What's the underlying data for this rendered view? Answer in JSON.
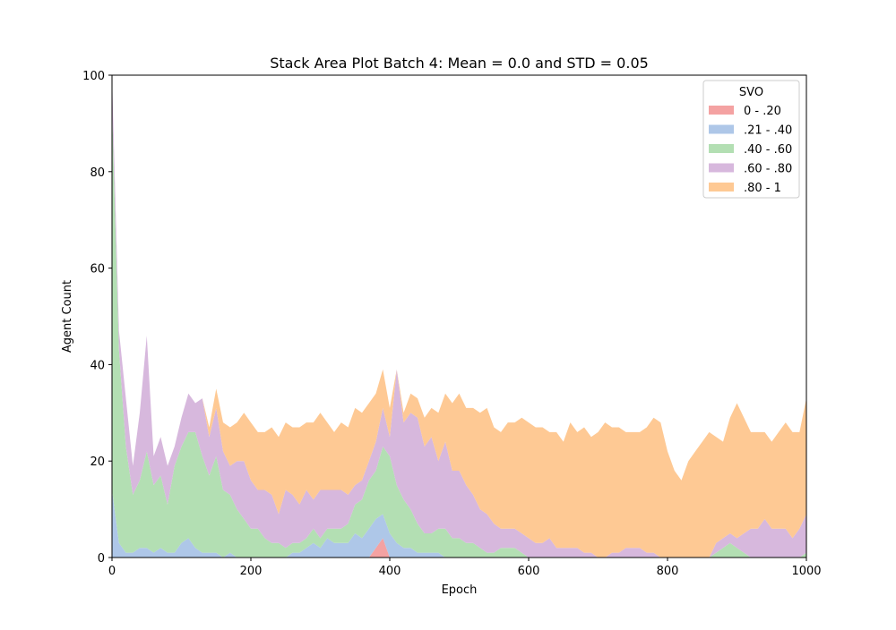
{
  "chart_data": {
    "type": "area",
    "stacked": true,
    "title": "Stack Area Plot Batch 4: Mean = 0.0 and STD = 0.05",
    "xlabel": "Epoch",
    "ylabel": "Agent Count",
    "xlim": [
      0,
      1000
    ],
    "ylim": [
      0,
      100
    ],
    "xticks": [
      "0",
      "200",
      "400",
      "600",
      "800",
      "1000"
    ],
    "yticks": [
      "0",
      "20",
      "40",
      "60",
      "80",
      "100"
    ],
    "grid": false,
    "legend": {
      "title": "SVO",
      "placement": "top-right"
    },
    "x": [
      0,
      10,
      20,
      30,
      40,
      50,
      60,
      70,
      80,
      90,
      100,
      110,
      120,
      130,
      140,
      150,
      160,
      170,
      180,
      190,
      200,
      210,
      220,
      230,
      240,
      250,
      260,
      270,
      280,
      290,
      300,
      310,
      320,
      330,
      340,
      350,
      360,
      370,
      380,
      390,
      400,
      410,
      420,
      430,
      440,
      450,
      460,
      470,
      480,
      490,
      500,
      510,
      520,
      530,
      540,
      550,
      560,
      570,
      580,
      590,
      600,
      610,
      620,
      630,
      640,
      650,
      660,
      670,
      680,
      690,
      700,
      710,
      720,
      730,
      740,
      750,
      760,
      770,
      780,
      790,
      800,
      810,
      820,
      830,
      840,
      850,
      860,
      870,
      880,
      890,
      900,
      910,
      920,
      930,
      940,
      950,
      960,
      970,
      980,
      990,
      1000
    ],
    "series": [
      {
        "name": "0 - .20",
        "color": "#f4a2a2",
        "values": [
          0,
          0,
          0,
          0,
          0,
          0,
          0,
          0,
          0,
          0,
          0,
          0,
          0,
          0,
          0,
          0,
          0,
          0,
          0,
          0,
          0,
          0,
          0,
          0,
          0,
          0,
          0,
          0,
          0,
          0,
          0,
          0,
          0,
          0,
          0,
          0,
          0,
          0,
          2,
          4,
          0,
          0,
          0,
          0,
          0,
          0,
          0,
          0,
          0,
          0,
          0,
          0,
          0,
          0,
          0,
          0,
          0,
          0,
          0,
          0,
          0,
          0,
          0,
          0,
          0,
          0,
          0,
          0,
          0,
          0,
          0,
          0,
          0,
          0,
          0,
          0,
          0,
          0,
          0,
          0,
          0,
          0,
          0,
          0,
          0,
          0,
          0,
          0,
          0,
          0,
          0,
          0,
          0,
          0,
          0,
          0,
          0,
          0,
          0,
          0,
          0
        ]
      },
      {
        "name": ".21 - .40",
        "color": "#aec7e8",
        "values": [
          14,
          3,
          1,
          1,
          2,
          2,
          1,
          2,
          1,
          1,
          3,
          4,
          2,
          1,
          1,
          1,
          0,
          1,
          0,
          0,
          0,
          0,
          0,
          0,
          0,
          0,
          1,
          1,
          2,
          3,
          2,
          4,
          3,
          3,
          3,
          5,
          4,
          6,
          6,
          5,
          5,
          3,
          2,
          2,
          1,
          1,
          1,
          1,
          0,
          0,
          0,
          0,
          0,
          0,
          0,
          0,
          0,
          0,
          0,
          0,
          0,
          0,
          0,
          0,
          0,
          0,
          0,
          0,
          0,
          0,
          0,
          0,
          0,
          0,
          0,
          0,
          0,
          0,
          0,
          0,
          0,
          0,
          0,
          0,
          0,
          0,
          0,
          0,
          0,
          0,
          0,
          0,
          0,
          0,
          0,
          0,
          0,
          0,
          0,
          0,
          0
        ]
      },
      {
        "name": ".40 - .60",
        "color": "#b3dfb3",
        "values": [
          80,
          40,
          22,
          12,
          14,
          20,
          14,
          15,
          10,
          18,
          20,
          22,
          24,
          20,
          16,
          20,
          14,
          12,
          10,
          8,
          6,
          6,
          4,
          3,
          3,
          2,
          2,
          2,
          2,
          3,
          2,
          2,
          3,
          3,
          4,
          6,
          8,
          10,
          10,
          14,
          16,
          12,
          10,
          8,
          6,
          4,
          4,
          5,
          6,
          4,
          4,
          3,
          3,
          2,
          1,
          1,
          2,
          2,
          2,
          1,
          0,
          0,
          0,
          0,
          0,
          0,
          0,
          0,
          0,
          0,
          0,
          0,
          0,
          0,
          0,
          0,
          0,
          0,
          0,
          0,
          0,
          0,
          0,
          0,
          0,
          0,
          0,
          1,
          2,
          3,
          2,
          1,
          0,
          0,
          0,
          0,
          0,
          0,
          0,
          0,
          1
        ]
      },
      {
        "name": ".60 - .80",
        "color": "#d7b8dd",
        "values": [
          6,
          4,
          10,
          6,
          14,
          24,
          6,
          8,
          8,
          4,
          6,
          8,
          6,
          12,
          8,
          10,
          8,
          6,
          10,
          12,
          10,
          8,
          10,
          10,
          6,
          12,
          10,
          8,
          10,
          6,
          10,
          8,
          8,
          8,
          6,
          4,
          4,
          4,
          6,
          8,
          4,
          24,
          16,
          20,
          22,
          18,
          20,
          14,
          18,
          14,
          14,
          12,
          10,
          8,
          8,
          6,
          4,
          4,
          4,
          4,
          4,
          3,
          3,
          4,
          2,
          2,
          2,
          2,
          1,
          1,
          0,
          0,
          1,
          1,
          2,
          2,
          2,
          1,
          1,
          0,
          0,
          0,
          0,
          0,
          0,
          0,
          0,
          2,
          2,
          2,
          2,
          4,
          6,
          6,
          8,
          6,
          6,
          6,
          4,
          6,
          8
        ]
      },
      {
        "name": ".80 - 1",
        "color": "#fec994",
        "values": [
          0,
          0,
          0,
          0,
          0,
          0,
          0,
          0,
          0,
          0,
          0,
          0,
          0,
          0,
          2,
          4,
          6,
          8,
          8,
          10,
          12,
          12,
          12,
          14,
          16,
          14,
          14,
          16,
          14,
          16,
          16,
          14,
          12,
          14,
          14,
          16,
          14,
          12,
          10,
          8,
          6,
          0,
          2,
          4,
          4,
          6,
          6,
          10,
          10,
          14,
          16,
          16,
          18,
          20,
          22,
          20,
          20,
          22,
          22,
          24,
          24,
          24,
          24,
          22,
          24,
          22,
          26,
          24,
          26,
          24,
          26,
          28,
          26,
          26,
          24,
          24,
          24,
          26,
          28,
          28,
          22,
          18,
          16,
          20,
          22,
          24,
          26,
          22,
          20,
          24,
          28,
          24,
          20,
          20,
          18,
          18,
          20,
          22,
          22,
          20,
          24
        ]
      }
    ]
  }
}
